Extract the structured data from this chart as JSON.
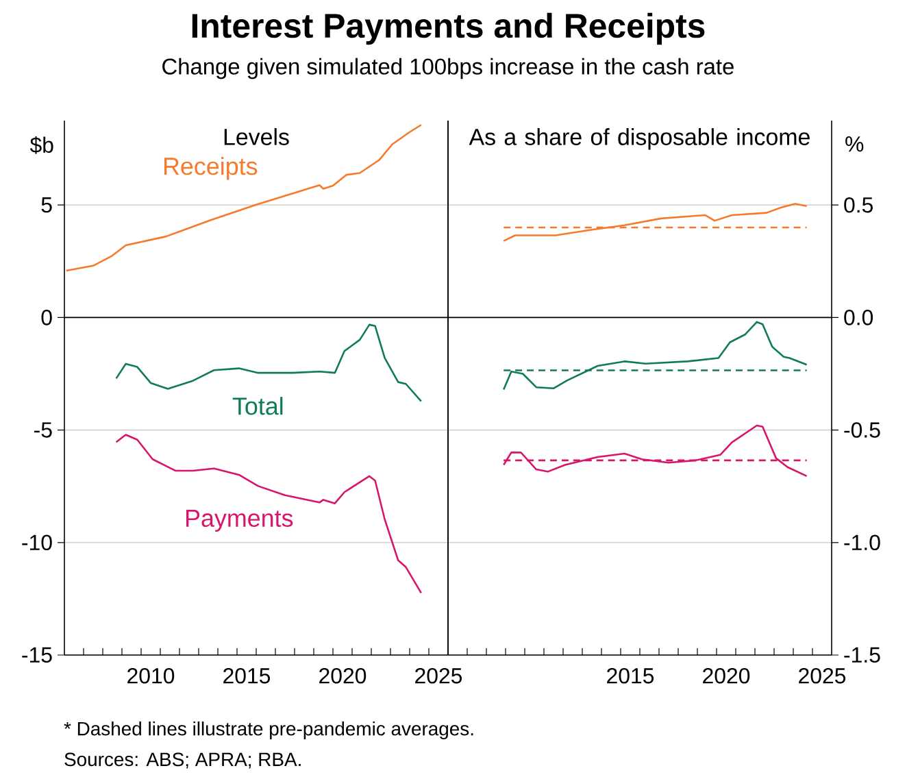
{
  "chart_data": [
    {
      "type": "line",
      "title": "Interest Payments and Receipts",
      "subtitle": "Change given simulated 100bps increase in the cash rate",
      "ylabel": "$b",
      "annotations": [
        "Levels",
        "*     Dashed lines illustrate pre-pandemic averages.",
        "Sources: ABS; APRA; RBA."
      ],
      "xlim": [
        2006,
        2026
      ],
      "ylim": [
        -15,
        8.75
      ],
      "xticks": [
        {
          "value": 2007,
          "label": null
        },
        {
          "value": 2008,
          "label": null
        },
        {
          "value": 2009,
          "label": null
        },
        {
          "value": 2010,
          "label": null
        },
        {
          "value": 2010.5,
          "label": "2010"
        },
        {
          "value": 2011,
          "label": null
        },
        {
          "value": 2012,
          "label": null
        },
        {
          "value": 2013,
          "label": null
        },
        {
          "value": 2014,
          "label": null
        },
        {
          "value": 2015,
          "label": null
        },
        {
          "value": 2015.5,
          "label": "2015"
        },
        {
          "value": 2016,
          "label": null
        },
        {
          "value": 2017,
          "label": null
        },
        {
          "value": 2018,
          "label": null
        },
        {
          "value": 2019,
          "label": null
        },
        {
          "value": 2020,
          "label": null
        },
        {
          "value": 2020.5,
          "label": "2020"
        },
        {
          "value": 2021,
          "label": null
        },
        {
          "value": 2022,
          "label": null
        },
        {
          "value": 2023,
          "label": null
        },
        {
          "value": 2024,
          "label": null
        },
        {
          "value": 2025,
          "label": null
        },
        {
          "value": 2025.5,
          "label": "2025"
        }
      ],
      "yticks": [
        -15,
        -10,
        -5,
        0,
        5
      ],
      "grid": "y",
      "ref_lines": [
        {
          "axis": "y",
          "value": 0,
          "color": "#000000"
        }
      ],
      "series": [
        {
          "name": "Receipts",
          "color": "#f7792b",
          "x": [
            2006.1,
            2007.5,
            2008.5,
            2009.2,
            2011.3,
            2013.6,
            2016.0,
            2019.3,
            2019.5,
            2020.0,
            2020.7,
            2021.4,
            2022.4,
            2023.1,
            2024.0,
            2024.6
          ],
          "values": [
            2.08,
            2.3,
            2.75,
            3.21,
            3.6,
            4.32,
            5.01,
            5.88,
            5.72,
            5.86,
            6.34,
            6.42,
            6.99,
            7.7,
            8.24,
            8.56
          ]
        },
        {
          "name": "Total",
          "color": "#107c55",
          "x": [
            2008.7,
            2009.2,
            2009.8,
            2010.5,
            2011.4,
            2012.7,
            2013.8,
            2015.1,
            2016.1,
            2017.9,
            2019.3,
            2020.1,
            2020.6,
            2021.4,
            2021.9,
            2022.2,
            2022.7,
            2023.4,
            2023.8,
            2024.6
          ],
          "values": [
            -2.71,
            -2.06,
            -2.2,
            -2.91,
            -3.17,
            -2.81,
            -2.34,
            -2.26,
            -2.46,
            -2.46,
            -2.4,
            -2.46,
            -1.49,
            -0.99,
            -0.32,
            -0.38,
            -1.8,
            -2.87,
            -2.95,
            -3.72
          ]
        },
        {
          "name": "Payments",
          "color": "#d8156c",
          "x": [
            2008.7,
            2009.2,
            2009.8,
            2010.6,
            2011.8,
            2012.7,
            2013.8,
            2015.1,
            2016.1,
            2017.5,
            2019.3,
            2019.5,
            2020.1,
            2020.6,
            2021.9,
            2022.2,
            2022.7,
            2023.4,
            2023.8,
            2024.6
          ],
          "values": [
            -5.54,
            -5.21,
            -5.43,
            -6.3,
            -6.81,
            -6.81,
            -6.71,
            -6.99,
            -7.49,
            -7.9,
            -8.22,
            -8.1,
            -8.26,
            -7.76,
            -7.05,
            -7.25,
            -8.97,
            -10.79,
            -11.09,
            -12.24
          ]
        }
      ]
    },
    {
      "type": "line",
      "ylabel": "%",
      "annotations": [
        "As a share of disposable income"
      ],
      "xlim": [
        2006,
        2026
      ],
      "ylim": [
        -1.5,
        0.875
      ],
      "xticks": [
        {
          "value": 2007,
          "label": null
        },
        {
          "value": 2008,
          "label": null
        },
        {
          "value": 2009,
          "label": null
        },
        {
          "value": 2010,
          "label": null
        },
        {
          "value": 2011,
          "label": null
        },
        {
          "value": 2012,
          "label": null
        },
        {
          "value": 2013,
          "label": null
        },
        {
          "value": 2014,
          "label": null
        },
        {
          "value": 2015,
          "label": null
        },
        {
          "value": 2015.5,
          "label": "2015"
        },
        {
          "value": 2016,
          "label": null
        },
        {
          "value": 2017,
          "label": null
        },
        {
          "value": 2018,
          "label": null
        },
        {
          "value": 2019,
          "label": null
        },
        {
          "value": 2020,
          "label": null
        },
        {
          "value": 2020.5,
          "label": "2020"
        },
        {
          "value": 2021,
          "label": null
        },
        {
          "value": 2022,
          "label": null
        },
        {
          "value": 2023,
          "label": null
        },
        {
          "value": 2024,
          "label": null
        },
        {
          "value": 2025,
          "label": null
        },
        {
          "value": 2025.5,
          "label": "2025"
        }
      ],
      "yticks": [
        {
          "value": -1.5,
          "label": "-1.5"
        },
        {
          "value": -1.0,
          "label": "-1.0"
        },
        {
          "value": -0.5,
          "label": "-0.5"
        },
        {
          "value": 0,
          "label": "0.0"
        },
        {
          "value": 0.5,
          "label": "0.5"
        }
      ],
      "grid": "y",
      "ref_lines": [
        {
          "axis": "y",
          "value": 0,
          "color": "#000000"
        }
      ],
      "series": [
        {
          "color": "#f7792b",
          "x": [
            2008.9,
            2009.5,
            2011.6,
            2013.5,
            2015.2,
            2017.1,
            2019.4,
            2019.9,
            2020.8,
            2022.6,
            2023.4,
            2024.1,
            2024.7
          ],
          "values": [
            0.34,
            0.365,
            0.365,
            0.39,
            0.41,
            0.44,
            0.455,
            0.43,
            0.455,
            0.465,
            0.49,
            0.505,
            0.495
          ]
        },
        {
          "color": "#f7792b",
          "line_style": "dashed",
          "x": [
            2008.9,
            2024.7
          ],
          "values": [
            0.4,
            0.4
          ]
        },
        {
          "color": "#107c55",
          "x": [
            2008.9,
            2009.3,
            2009.9,
            2010.6,
            2011.5,
            2012.2,
            2013.8,
            2015.2,
            2016.3,
            2018.5,
            2020.1,
            2020.7,
            2021.5,
            2022.1,
            2022.4,
            2022.9,
            2023.5,
            2023.8,
            2024.7
          ],
          "values": [
            -0.32,
            -0.24,
            -0.25,
            -0.31,
            -0.315,
            -0.28,
            -0.215,
            -0.195,
            -0.205,
            -0.195,
            -0.18,
            -0.11,
            -0.075,
            -0.02,
            -0.03,
            -0.13,
            -0.175,
            -0.18,
            -0.21
          ]
        },
        {
          "color": "#107c55",
          "line_style": "dashed",
          "x": [
            2008.9,
            2024.7
          ],
          "values": [
            -0.235,
            -0.235
          ]
        },
        {
          "color": "#d8156c",
          "x": [
            2008.9,
            2009.3,
            2009.8,
            2010.6,
            2011.2,
            2012.1,
            2013.8,
            2015.2,
            2016.1,
            2017.5,
            2018.9,
            2020.2,
            2020.8,
            2022.1,
            2022.4,
            2023.1,
            2023.7,
            2024.7
          ],
          "values": [
            -0.655,
            -0.6,
            -0.6,
            -0.675,
            -0.685,
            -0.655,
            -0.62,
            -0.605,
            -0.63,
            -0.645,
            -0.635,
            -0.61,
            -0.555,
            -0.48,
            -0.485,
            -0.625,
            -0.665,
            -0.705
          ]
        },
        {
          "color": "#d8156c",
          "line_style": "dashed",
          "x": [
            2008.9,
            2024.7
          ],
          "values": [
            -0.635,
            -0.635
          ]
        }
      ]
    }
  ]
}
